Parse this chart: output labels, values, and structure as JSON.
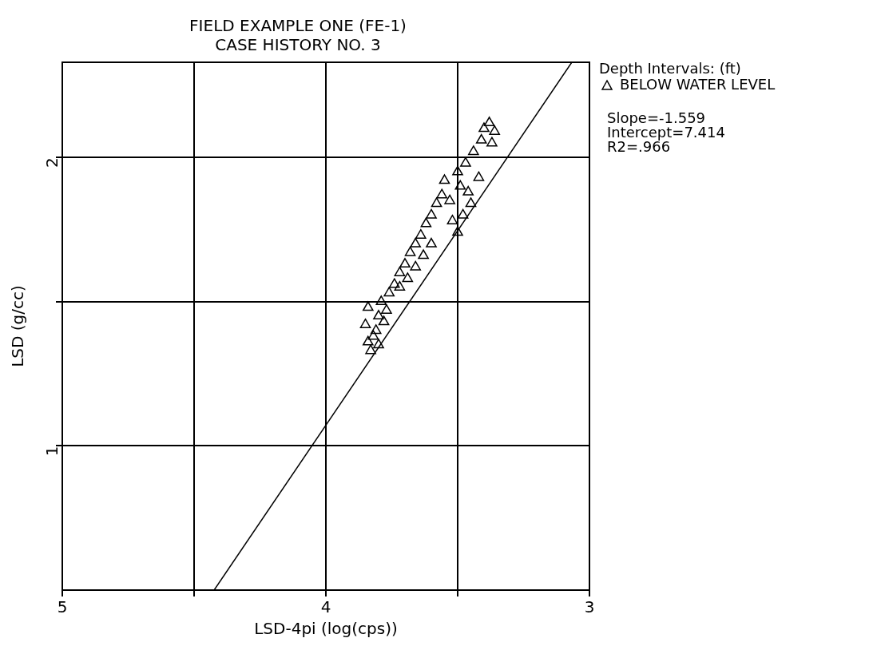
{
  "chart_data": {
    "type": "scatter",
    "title": "FIELD EXAMPLE ONE (FE-1)",
    "subtitle": "CASE HISTORY NO. 3",
    "xlabel": "LSD-4pi (log(cps))",
    "ylabel": "LSD (g/cc)",
    "legend_title": "Depth Intervals: (ft)",
    "xlim": [
      5,
      3
    ],
    "xticks": [
      5,
      {
        "value": 4.5,
        "label": null
      },
      4,
      {
        "value": 3.5,
        "label": null
      },
      3
    ],
    "ylim": [
      0.5,
      2.33
    ],
    "yticks": [
      1,
      {
        "value": 1.5,
        "label": null
      },
      2
    ],
    "grid": true,
    "legend": "top right",
    "annotations": [
      "Slope=-1.559",
      "Intercept=7.414",
      "R2=.966"
    ],
    "series": [
      {
        "name": "BELOW WATER LEVEL",
        "color": "#000000",
        "marker": "triangle",
        "x": [
          3.84,
          3.85,
          3.84,
          3.82,
          3.8,
          3.81,
          3.79,
          3.78,
          3.77,
          3.83,
          3.8,
          3.76,
          3.74,
          3.72,
          3.7,
          3.68,
          3.66,
          3.64,
          3.62,
          3.6,
          3.58,
          3.56,
          3.72,
          3.69,
          3.66,
          3.63,
          3.6,
          3.55,
          3.53,
          3.52,
          3.5,
          3.48,
          3.46,
          3.5,
          3.47,
          3.44,
          3.42,
          3.45,
          3.49,
          3.41,
          3.4,
          3.38,
          3.36,
          3.37
        ],
        "values": [
          1.36,
          1.42,
          1.48,
          1.38,
          1.45,
          1.4,
          1.5,
          1.43,
          1.47,
          1.33,
          1.35,
          1.53,
          1.56,
          1.6,
          1.63,
          1.67,
          1.7,
          1.73,
          1.77,
          1.8,
          1.84,
          1.87,
          1.55,
          1.58,
          1.62,
          1.66,
          1.7,
          1.92,
          1.85,
          1.78,
          1.74,
          1.8,
          1.88,
          1.95,
          1.98,
          2.02,
          1.93,
          1.84,
          1.9,
          2.06,
          2.1,
          2.12,
          2.09,
          2.05
        ]
      },
      {
        "type": "line",
        "color": "#000000",
        "x": [
          4.424,
          3.067
        ],
        "values": [
          0.5,
          2.33
        ]
      }
    ]
  }
}
